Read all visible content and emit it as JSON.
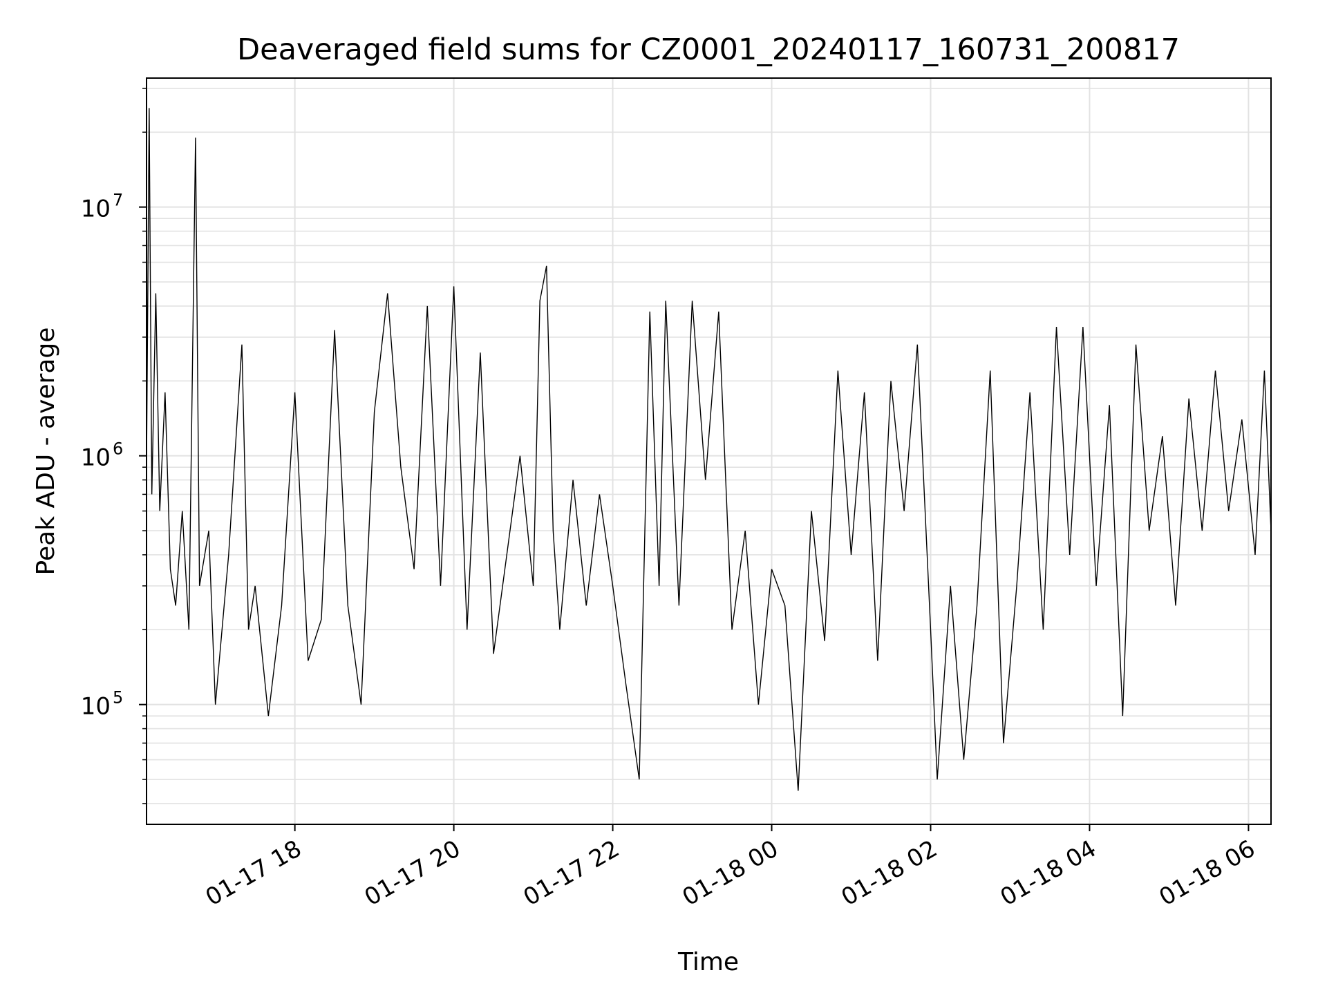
{
  "chart_data": {
    "type": "line",
    "title": "Deaveraged field sums for CZ0001_20240117_160731_200817",
    "xlabel": "Time",
    "ylabel": "Peak ADU - average",
    "yscale": "log",
    "xlim": [
      "2024-01-17T16:08",
      "2024-01-18T06:17"
    ],
    "ylim": [
      33000,
      33000000
    ],
    "grid": true,
    "x_ticks": [
      {
        "value": "2024-01-17T18:00",
        "label": "01-17 18"
      },
      {
        "value": "2024-01-17T20:00",
        "label": "01-17 20"
      },
      {
        "value": "2024-01-17T22:00",
        "label": "01-17 22"
      },
      {
        "value": "2024-01-18T00:00",
        "label": "01-18 00"
      },
      {
        "value": "2024-01-18T02:00",
        "label": "01-18 02"
      },
      {
        "value": "2024-01-18T04:00",
        "label": "01-18 04"
      },
      {
        "value": "2024-01-18T06:00",
        "label": "01-18 06"
      }
    ],
    "y_ticks": [
      {
        "value": 100000,
        "base": "10",
        "exp": "5"
      },
      {
        "value": 1000000,
        "base": "10",
        "exp": "6"
      },
      {
        "value": 10000000,
        "base": "10",
        "exp": "7"
      }
    ],
    "series": [
      {
        "color": "#000000",
        "points": [
          [
            "2024-01-17T16:08",
            900000
          ],
          [
            "2024-01-17T16:10",
            25000000
          ],
          [
            "2024-01-17T16:12",
            700000
          ],
          [
            "2024-01-17T16:15",
            4500000
          ],
          [
            "2024-01-17T16:18",
            600000
          ],
          [
            "2024-01-17T16:22",
            1800000
          ],
          [
            "2024-01-17T16:26",
            350000
          ],
          [
            "2024-01-17T16:30",
            250000
          ],
          [
            "2024-01-17T16:35",
            600000
          ],
          [
            "2024-01-17T16:40",
            200000
          ],
          [
            "2024-01-17T16:45",
            19000000
          ],
          [
            "2024-01-17T16:48",
            300000
          ],
          [
            "2024-01-17T16:55",
            500000
          ],
          [
            "2024-01-17T17:00",
            100000
          ],
          [
            "2024-01-17T17:10",
            400000
          ],
          [
            "2024-01-17T17:20",
            2800000
          ],
          [
            "2024-01-17T17:25",
            200000
          ],
          [
            "2024-01-17T17:30",
            300000
          ],
          [
            "2024-01-17T17:40",
            90000
          ],
          [
            "2024-01-17T17:50",
            250000
          ],
          [
            "2024-01-17T18:00",
            1800000
          ],
          [
            "2024-01-17T18:10",
            150000
          ],
          [
            "2024-01-17T18:20",
            220000
          ],
          [
            "2024-01-17T18:30",
            3200000
          ],
          [
            "2024-01-17T18:40",
            250000
          ],
          [
            "2024-01-17T18:50",
            100000
          ],
          [
            "2024-01-17T19:00",
            1500000
          ],
          [
            "2024-01-17T19:10",
            4500000
          ],
          [
            "2024-01-17T19:20",
            900000
          ],
          [
            "2024-01-17T19:30",
            350000
          ],
          [
            "2024-01-17T19:40",
            4000000
          ],
          [
            "2024-01-17T19:50",
            300000
          ],
          [
            "2024-01-17T20:00",
            4800000
          ],
          [
            "2024-01-17T20:10",
            200000
          ],
          [
            "2024-01-17T20:20",
            2600000
          ],
          [
            "2024-01-17T20:30",
            160000
          ],
          [
            "2024-01-17T20:40",
            400000
          ],
          [
            "2024-01-17T20:50",
            1000000
          ],
          [
            "2024-01-17T21:00",
            300000
          ],
          [
            "2024-01-17T21:05",
            4200000
          ],
          [
            "2024-01-17T21:10",
            5800000
          ],
          [
            "2024-01-17T21:15",
            500000
          ],
          [
            "2024-01-17T21:20",
            200000
          ],
          [
            "2024-01-17T21:30",
            800000
          ],
          [
            "2024-01-17T21:40",
            250000
          ],
          [
            "2024-01-17T21:50",
            700000
          ],
          [
            "2024-01-17T22:00",
            300000
          ],
          [
            "2024-01-17T22:10",
            120000
          ],
          [
            "2024-01-17T22:20",
            50000
          ],
          [
            "2024-01-17T22:28",
            3800000
          ],
          [
            "2024-01-17T22:35",
            300000
          ],
          [
            "2024-01-17T22:40",
            4200000
          ],
          [
            "2024-01-17T22:50",
            250000
          ],
          [
            "2024-01-17T23:00",
            4200000
          ],
          [
            "2024-01-17T23:10",
            800000
          ],
          [
            "2024-01-17T23:20",
            3800000
          ],
          [
            "2024-01-17T23:30",
            200000
          ],
          [
            "2024-01-17T23:40",
            500000
          ],
          [
            "2024-01-17T23:50",
            100000
          ],
          [
            "2024-01-18T00:00",
            350000
          ],
          [
            "2024-01-18T00:10",
            250000
          ],
          [
            "2024-01-18T00:20",
            45000
          ],
          [
            "2024-01-18T00:30",
            600000
          ],
          [
            "2024-01-18T00:40",
            180000
          ],
          [
            "2024-01-18T00:50",
            2200000
          ],
          [
            "2024-01-18T01:00",
            400000
          ],
          [
            "2024-01-18T01:10",
            1800000
          ],
          [
            "2024-01-18T01:20",
            150000
          ],
          [
            "2024-01-18T01:30",
            2000000
          ],
          [
            "2024-01-18T01:40",
            600000
          ],
          [
            "2024-01-18T01:50",
            2800000
          ],
          [
            "2024-01-18T02:00",
            200000
          ],
          [
            "2024-01-18T02:05",
            50000
          ],
          [
            "2024-01-18T02:15",
            300000
          ],
          [
            "2024-01-18T02:25",
            60000
          ],
          [
            "2024-01-18T02:35",
            250000
          ],
          [
            "2024-01-18T02:45",
            2200000
          ],
          [
            "2024-01-18T02:55",
            70000
          ],
          [
            "2024-01-18T03:05",
            300000
          ],
          [
            "2024-01-18T03:15",
            1800000
          ],
          [
            "2024-01-18T03:25",
            200000
          ],
          [
            "2024-01-18T03:35",
            3300000
          ],
          [
            "2024-01-18T03:45",
            400000
          ],
          [
            "2024-01-18T03:55",
            3300000
          ],
          [
            "2024-01-18T04:05",
            300000
          ],
          [
            "2024-01-18T04:15",
            1600000
          ],
          [
            "2024-01-18T04:25",
            90000
          ],
          [
            "2024-01-18T04:35",
            2800000
          ],
          [
            "2024-01-18T04:45",
            500000
          ],
          [
            "2024-01-18T04:55",
            1200000
          ],
          [
            "2024-01-18T05:05",
            250000
          ],
          [
            "2024-01-18T05:15",
            1700000
          ],
          [
            "2024-01-18T05:25",
            500000
          ],
          [
            "2024-01-18T05:35",
            2200000
          ],
          [
            "2024-01-18T05:45",
            600000
          ],
          [
            "2024-01-18T05:55",
            1400000
          ],
          [
            "2024-01-18T06:05",
            400000
          ],
          [
            "2024-01-18T06:12",
            2200000
          ],
          [
            "2024-01-18T06:17",
            500000
          ]
        ]
      }
    ]
  }
}
